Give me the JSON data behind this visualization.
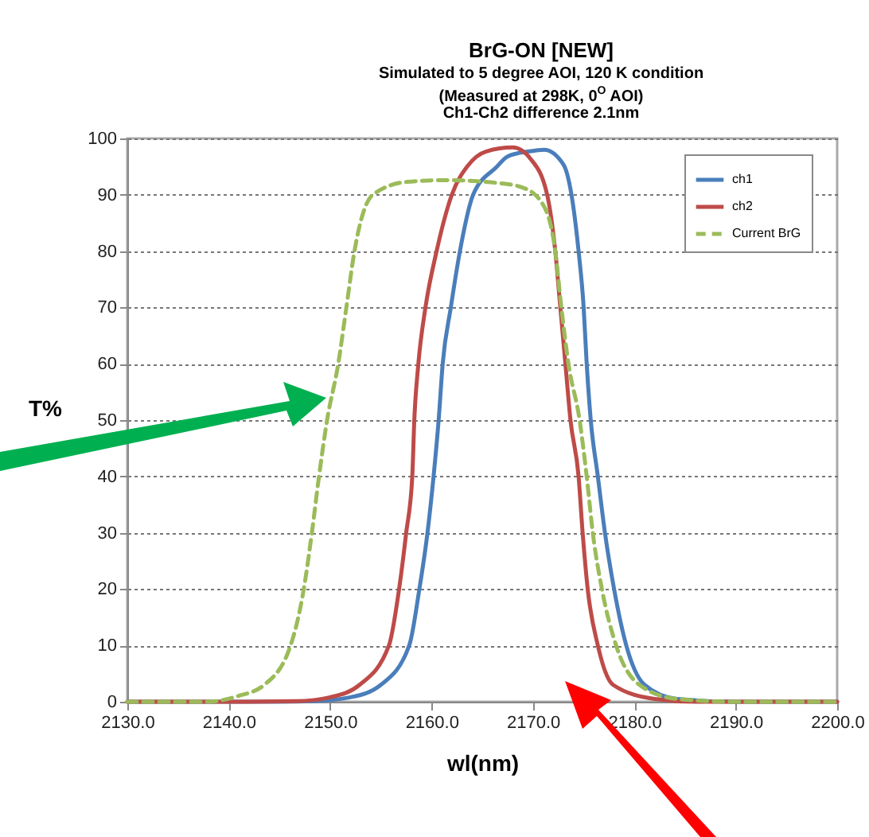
{
  "chart_data": {
    "type": "line",
    "title": "BrG-ON [NEW]",
    "subtitle": "Simulated to 5 degree AOI, 120 K condition\n(Measured at 298K, 0$^{O}$ AOI)\nCh1-Ch2 difference 2.1nm",
    "xlabel": "wl(nm)",
    "ylabel": "T%",
    "xlim": [
      2130,
      2200
    ],
    "xticks": [
      {
        "value": 2130,
        "label": "2130.0"
      },
      {
        "value": 2140,
        "label": "2140.0"
      },
      {
        "value": 2150,
        "label": "2150.0"
      },
      {
        "value": 2160,
        "label": "2160.0"
      },
      {
        "value": 2170,
        "label": "2170.0"
      },
      {
        "value": 2180,
        "label": "2180.0"
      },
      {
        "value": 2190,
        "label": "2190.0"
      },
      {
        "value": 2200,
        "label": "2200.0"
      }
    ],
    "ylim": [
      0,
      100
    ],
    "yticks": [
      0,
      10,
      20,
      30,
      40,
      50,
      60,
      70,
      80,
      90,
      100
    ],
    "grid": "y",
    "legend": "top right",
    "series": [
      {
        "name": "ch1",
        "color": "#4a7ebb",
        "line_style": "solid",
        "x": [
          2130,
          2140,
          2145,
          2148.3,
          2152,
          2155,
          2157.8,
          2158.8,
          2159.6,
          2160.2,
          2160.7,
          2161.1,
          2161.9,
          2162.8,
          2164.1,
          2166.4,
          2167.5,
          2169.6,
          2171.1,
          2173,
          2173.8,
          2174.5,
          2175,
          2175.3,
          2175.7,
          2176.4,
          2177.1,
          2178,
          2179.2,
          2181,
          2184.2,
          2190,
          2200
        ],
        "values": [
          0,
          0,
          0,
          0.1,
          0.8,
          3,
          10,
          20,
          30,
          40,
          50,
          60,
          70,
          80,
          90,
          94.9,
          96.8,
          97.7,
          98,
          95.4,
          90,
          80,
          70,
          60,
          50,
          40,
          30,
          20,
          10,
          3,
          0.5,
          0,
          0
        ]
      },
      {
        "name": "ch2",
        "color": "#be4b48",
        "line_style": "solid",
        "x": [
          2130,
          2140,
          2146.7,
          2150,
          2152.9,
          2155.8,
          2156.8,
          2157.5,
          2158.1,
          2158.3,
          2158.7,
          2159.4,
          2160.5,
          2162,
          2163.6,
          2165.4,
          2168,
          2169.8,
          2171.4,
          2172.2,
          2172.7,
          2173.2,
          2173.7,
          2174.5,
          2174.9,
          2175.4,
          2176.4,
          2177.9,
          2182,
          2186,
          2200
        ],
        "values": [
          0,
          0,
          0.1,
          0.8,
          3,
          10,
          20,
          30,
          40,
          50,
          60,
          70,
          80,
          90,
          95.2,
          97.7,
          98.4,
          96.3,
          90,
          80,
          70,
          60,
          50,
          40,
          30,
          20,
          10,
          3,
          0.5,
          0,
          0
        ]
      },
      {
        "name": "Current BrG",
        "color": "#9bbb59",
        "line_style": "dashed",
        "x": [
          2130,
          2137.8,
          2140.9,
          2143.5,
          2146.1,
          2147.4,
          2148.2,
          2148.9,
          2149.7,
          2150.8,
          2151.6,
          2152.4,
          2154.2,
          2157.6,
          2161.3,
          2166.5,
          2169.1,
          2171.1,
          2172.2,
          2172.8,
          2173.5,
          2174.6,
          2175.3,
          2175.9,
          2176.8,
          2178.2,
          2180.5,
          2184.2,
          2190,
          2200
        ],
        "values": [
          0,
          0,
          1,
          3,
          10,
          20,
          30,
          40,
          50,
          60,
          70,
          80,
          90,
          92.3,
          92.6,
          92.1,
          91.2,
          87.9,
          80,
          70,
          60,
          50,
          40,
          30,
          20,
          10,
          3,
          0.5,
          0,
          0
        ]
      }
    ]
  }
}
